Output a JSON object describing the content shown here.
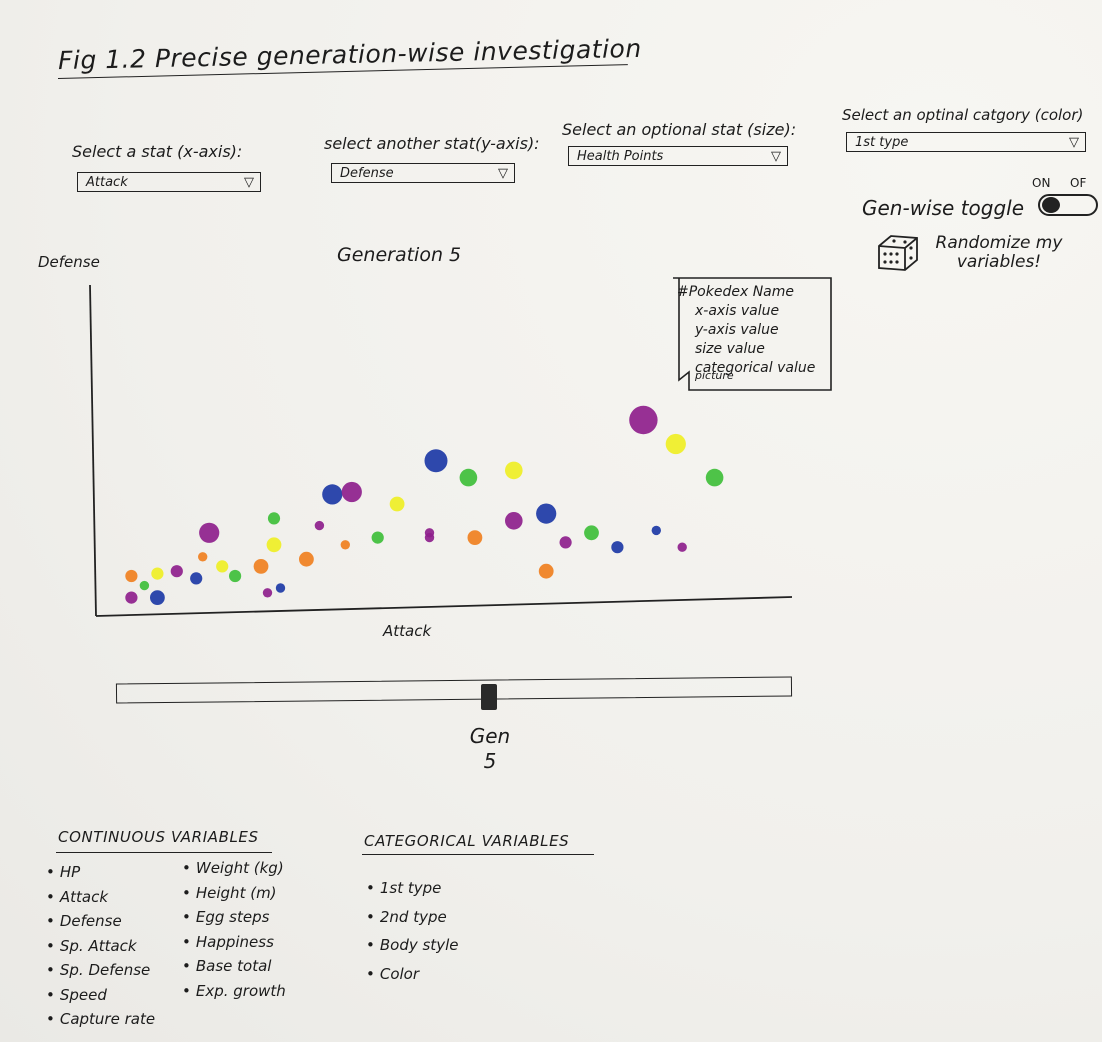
{
  "title": "Fig 1.2  Precise generation-wise investigation",
  "controls": {
    "x_stat": {
      "label": "Select a stat (x-axis):",
      "value": "Attack"
    },
    "y_stat": {
      "label": "select another stat(y-axis):",
      "value": "Defense"
    },
    "size_stat": {
      "label": "Select an optional stat (size):",
      "value": "Health Points"
    },
    "color_cat": {
      "label": "Select an optinal catgory (color)",
      "value": "1st type"
    },
    "dropdown_arrow": "▽"
  },
  "toggle": {
    "label": "Gen-wise toggle",
    "on": "ON",
    "off": "OF"
  },
  "randomize": {
    "label": "Randomize my variables!",
    "icon": "dice-icon"
  },
  "tooltip": {
    "lines": [
      "#Pokedex Name",
      "x-axis value",
      "y-axis value",
      "size value",
      "categorical value",
      "picture"
    ]
  },
  "slider": {
    "label": "Gen",
    "value": "5",
    "position": 0.55
  },
  "variables": {
    "continuous_heading": "CONTINUOUS VARIABLES",
    "continuous_col1": [
      "HP",
      "Attack",
      "Defense",
      "Sp. Attack",
      "Sp. Defense",
      "Speed",
      "Capture rate"
    ],
    "continuous_col2": [
      "Weight (kg)",
      "Height (m)",
      "Egg steps",
      "Happiness",
      "Base total",
      "Exp. growth"
    ],
    "categorical_heading": "CATEGORICAL VARIABLES",
    "categorical": [
      "1st type",
      "2nd type",
      "Body style",
      "Color"
    ]
  },
  "colors": {
    "purple": "#8e1f8c",
    "blue": "#1d3aa6",
    "green": "#3fbf3a",
    "yellow": "#efef25",
    "orange": "#f08020",
    "ink": "#1c1c1c"
  },
  "chart_data": {
    "type": "scatter",
    "title": "Generation 5",
    "xlabel": "Attack",
    "ylabel": "Defense",
    "xlim": [
      0,
      100
    ],
    "ylim": [
      0,
      100
    ],
    "size_label": "Health Points",
    "color_label": "1st type",
    "points": [
      {
        "x": 3,
        "y": 1,
        "size": 3,
        "cat": "purple"
      },
      {
        "x": 7,
        "y": 1,
        "size": 4,
        "cat": "blue"
      },
      {
        "x": 3,
        "y": 10,
        "size": 3,
        "cat": "orange"
      },
      {
        "x": 5,
        "y": 6,
        "size": 2,
        "cat": "green"
      },
      {
        "x": 7,
        "y": 11,
        "size": 3,
        "cat": "yellow"
      },
      {
        "x": 10,
        "y": 12,
        "size": 3,
        "cat": "purple"
      },
      {
        "x": 13,
        "y": 9,
        "size": 3,
        "cat": "blue"
      },
      {
        "x": 14,
        "y": 18,
        "size": 2,
        "cat": "orange"
      },
      {
        "x": 15,
        "y": 28,
        "size": 6,
        "cat": "purple"
      },
      {
        "x": 17,
        "y": 14,
        "size": 3,
        "cat": "yellow"
      },
      {
        "x": 19,
        "y": 10,
        "size": 3,
        "cat": "green"
      },
      {
        "x": 23,
        "y": 14,
        "size": 4,
        "cat": "orange"
      },
      {
        "x": 24,
        "y": 3,
        "size": 2,
        "cat": "purple"
      },
      {
        "x": 26,
        "y": 5,
        "size": 2,
        "cat": "blue"
      },
      {
        "x": 25,
        "y": 23,
        "size": 4,
        "cat": "yellow"
      },
      {
        "x": 25,
        "y": 34,
        "size": 3,
        "cat": "green"
      },
      {
        "x": 30,
        "y": 17,
        "size": 4,
        "cat": "orange"
      },
      {
        "x": 32,
        "y": 31,
        "size": 2,
        "cat": "purple"
      },
      {
        "x": 34,
        "y": 44,
        "size": 6,
        "cat": "blue"
      },
      {
        "x": 37,
        "y": 45,
        "size": 6,
        "cat": "purple"
      },
      {
        "x": 36,
        "y": 23,
        "size": 2,
        "cat": "orange"
      },
      {
        "x": 41,
        "y": 26,
        "size": 3,
        "cat": "green"
      },
      {
        "x": 44,
        "y": 40,
        "size": 4,
        "cat": "yellow"
      },
      {
        "x": 49,
        "y": 28,
        "size": 2,
        "cat": "purple"
      },
      {
        "x": 49,
        "y": 26,
        "size": 2,
        "cat": "purple"
      },
      {
        "x": 50,
        "y": 58,
        "size": 7,
        "cat": "blue"
      },
      {
        "x": 55,
        "y": 51,
        "size": 5,
        "cat": "green"
      },
      {
        "x": 56,
        "y": 26,
        "size": 4,
        "cat": "orange"
      },
      {
        "x": 62,
        "y": 54,
        "size": 5,
        "cat": "yellow"
      },
      {
        "x": 62,
        "y": 33,
        "size": 5,
        "cat": "purple"
      },
      {
        "x": 67,
        "y": 36,
        "size": 6,
        "cat": "blue"
      },
      {
        "x": 67,
        "y": 12,
        "size": 4,
        "cat": "orange"
      },
      {
        "x": 70,
        "y": 24,
        "size": 3,
        "cat": "purple"
      },
      {
        "x": 74,
        "y": 28,
        "size": 4,
        "cat": "green"
      },
      {
        "x": 78,
        "y": 22,
        "size": 3,
        "cat": "blue"
      },
      {
        "x": 82,
        "y": 75,
        "size": 9,
        "cat": "purple"
      },
      {
        "x": 84,
        "y": 29,
        "size": 2,
        "cat": "blue"
      },
      {
        "x": 87,
        "y": 65,
        "size": 6,
        "cat": "yellow"
      },
      {
        "x": 88,
        "y": 22,
        "size": 2,
        "cat": "purple"
      },
      {
        "x": 93,
        "y": 51,
        "size": 5,
        "cat": "green"
      }
    ]
  }
}
